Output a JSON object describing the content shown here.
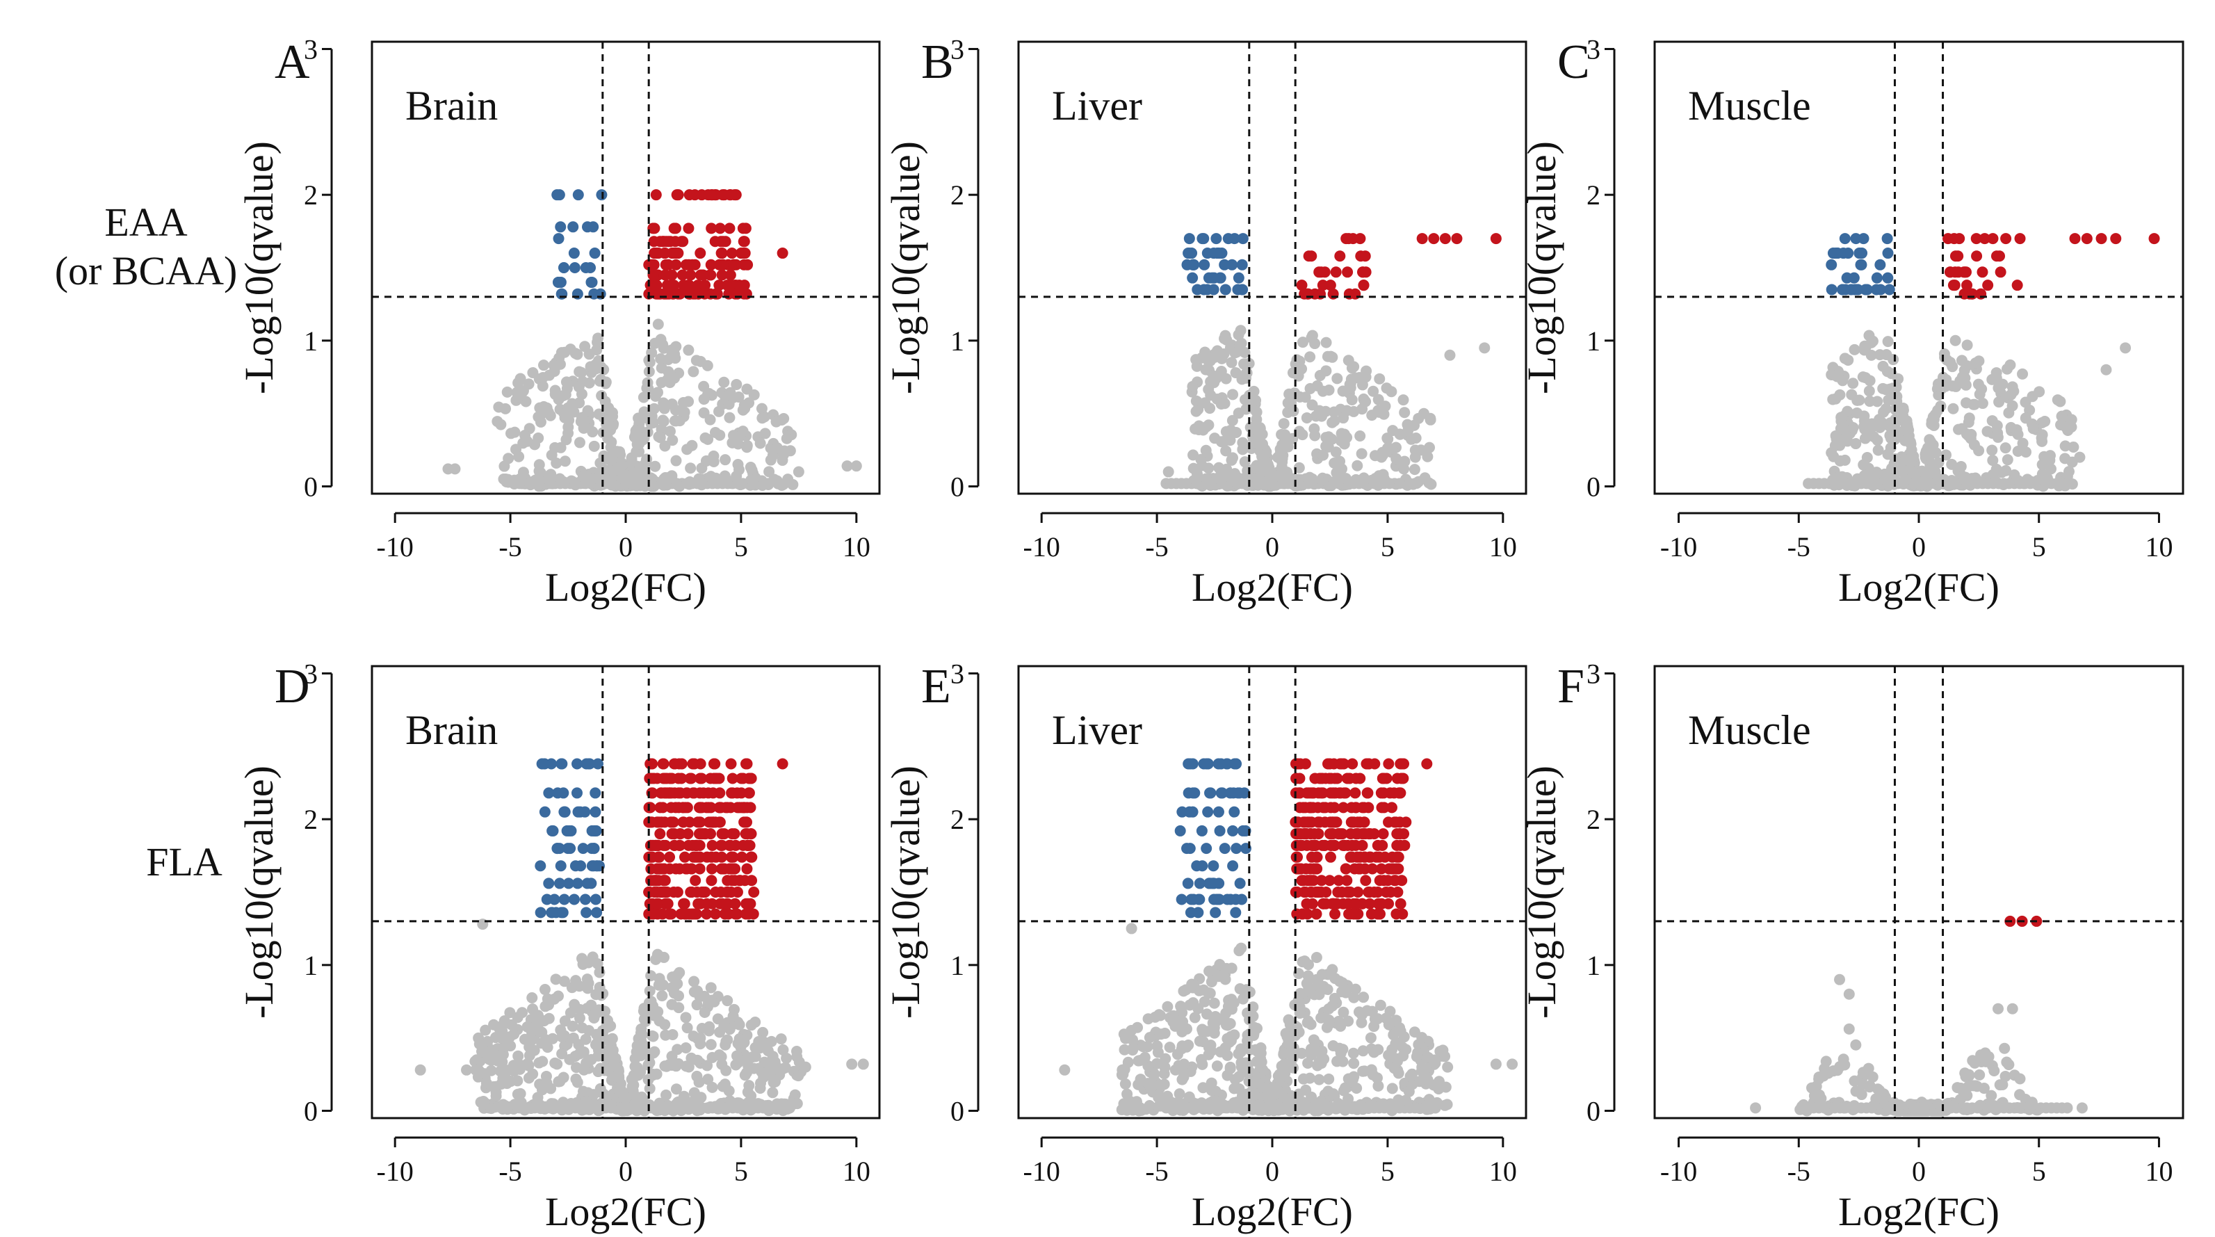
{
  "row_labels": {
    "eaa_line1": "EAA",
    "eaa_line2": "(or BCAA)",
    "fla": "FLA"
  },
  "colors": {
    "down": "#3A6A9E",
    "up": "#C4141C",
    "ns": "#BDBDBD",
    "axis": "#111111"
  },
  "chart_data": [
    {
      "type": "scatter",
      "panel": "A",
      "title": "Brain",
      "xlabel": "Log2(FC)",
      "ylabel": "-Log10(qvalue)",
      "xlim": [
        -11,
        11
      ],
      "ylim": [
        -0.05,
        3.05
      ],
      "xticks": [
        -10,
        -5,
        0,
        5,
        10
      ],
      "yticks": [
        0,
        1,
        2,
        3
      ],
      "xtick_labels": [
        "-10",
        "-5",
        "0",
        "5",
        "10"
      ],
      "ytick_labels": [
        "0",
        "1",
        "2",
        "3"
      ],
      "fc_threshold": [
        -1,
        1
      ],
      "q_threshold": 1.3,
      "down": {
        "x_range": [
          -3.0,
          -1.0
        ],
        "y_levels": [
          2.0,
          1.78,
          1.7,
          1.6,
          1.5,
          1.4,
          1.32
        ],
        "n": 26
      },
      "up": {
        "x_range": [
          1.0,
          5.3
        ],
        "y_levels": [
          2.0,
          1.77,
          1.68,
          1.6,
          1.52,
          1.45,
          1.38,
          1.32
        ],
        "n": 150,
        "outliers": [
          [
            6.8,
            1.6
          ]
        ]
      },
      "ns": {
        "n": 560,
        "x_extent": [
          -7.7,
          10.0
        ],
        "outliers": [
          [
            -7.4,
            0.12
          ],
          [
            -7.7,
            0.12
          ],
          [
            9.6,
            0.14
          ],
          [
            10.0,
            0.14
          ],
          [
            -5.2,
            0.05
          ],
          [
            7.5,
            0.1
          ]
        ]
      }
    },
    {
      "type": "scatter",
      "panel": "B",
      "title": "Liver",
      "xlabel": "Log2(FC)",
      "ylabel": "-Log10(qvalue)",
      "xlim": [
        -11,
        11
      ],
      "ylim": [
        -0.05,
        3.05
      ],
      "xticks": [
        -10,
        -5,
        0,
        5,
        10
      ],
      "yticks": [
        0,
        1,
        2,
        3
      ],
      "xtick_labels": [
        "-10",
        "-5",
        "0",
        "5",
        "10"
      ],
      "ytick_labels": [
        "0",
        "1",
        "2",
        "3"
      ],
      "fc_threshold": [
        -1,
        1
      ],
      "q_threshold": 1.3,
      "down": {
        "x_range": [
          -3.7,
          -1.2
        ],
        "y_levels": [
          1.7,
          1.6,
          1.52,
          1.43,
          1.35
        ],
        "n": 38
      },
      "up": {
        "x_range": [
          1.2,
          4.2
        ],
        "y_levels": [
          1.7,
          1.58,
          1.47,
          1.38,
          1.32
        ],
        "n": 30,
        "outliers": [
          [
            6.5,
            1.7
          ],
          [
            7.0,
            1.7
          ],
          [
            7.5,
            1.7
          ],
          [
            8.0,
            1.7
          ],
          [
            9.7,
            1.7
          ]
        ]
      },
      "ns": {
        "n": 540,
        "x_extent": [
          -4.8,
          9.5
        ],
        "outliers": [
          [
            7.7,
            0.9
          ],
          [
            9.2,
            0.95
          ],
          [
            6.2,
            0.2
          ],
          [
            5.7,
            0.12
          ],
          [
            -4.5,
            0.1
          ]
        ]
      }
    },
    {
      "type": "scatter",
      "panel": "C",
      "title": "Muscle",
      "xlabel": "Log2(FC)",
      "ylabel": "-Log10(qvalue)",
      "xlim": [
        -11,
        11
      ],
      "ylim": [
        -0.05,
        3.05
      ],
      "xticks": [
        -10,
        -5,
        0,
        5,
        10
      ],
      "yticks": [
        0,
        1,
        2,
        3
      ],
      "xtick_labels": [
        "-10",
        "-5",
        "0",
        "5",
        "10"
      ],
      "ytick_labels": [
        "0",
        "1",
        "2",
        "3"
      ],
      "fc_threshold": [
        -1,
        1
      ],
      "q_threshold": 1.3,
      "down": {
        "x_range": [
          -3.7,
          -1.2
        ],
        "y_levels": [
          1.7,
          1.6,
          1.52,
          1.43,
          1.35
        ],
        "n": 36
      },
      "up": {
        "x_range": [
          1.2,
          4.3
        ],
        "y_levels": [
          1.7,
          1.58,
          1.47,
          1.38,
          1.32
        ],
        "n": 32,
        "outliers": [
          [
            6.5,
            1.7
          ],
          [
            7.0,
            1.7
          ],
          [
            7.6,
            1.7
          ],
          [
            8.2,
            1.7
          ],
          [
            9.8,
            1.7
          ]
        ]
      },
      "ns": {
        "n": 540,
        "x_extent": [
          -5.0,
          9.0
        ],
        "outliers": [
          [
            7.8,
            0.8
          ],
          [
            8.6,
            0.95
          ],
          [
            6.7,
            0.2
          ],
          [
            5.5,
            0.12
          ]
        ]
      }
    },
    {
      "type": "scatter",
      "panel": "D",
      "title": "Brain",
      "xlabel": "Log2(FC)",
      "ylabel": "-Log10(qvalue)",
      "xlim": [
        -11,
        11
      ],
      "ylim": [
        -0.05,
        3.05
      ],
      "xticks": [
        -10,
        -5,
        0,
        5,
        10
      ],
      "yticks": [
        0,
        1,
        2,
        3
      ],
      "xtick_labels": [
        "-10",
        "-5",
        "0",
        "5",
        "10"
      ],
      "ytick_labels": [
        "0",
        "1",
        "2",
        "3"
      ],
      "fc_threshold": [
        -1,
        1
      ],
      "q_threshold": 1.3,
      "down": {
        "x_range": [
          -3.7,
          -1.1
        ],
        "y_levels": [
          2.38,
          2.18,
          2.05,
          1.92,
          1.8,
          1.68,
          1.56,
          1.45,
          1.36
        ],
        "n": 70
      },
      "up": {
        "x_range": [
          1.0,
          5.6
        ],
        "y_levels": [
          2.38,
          2.28,
          2.18,
          2.08,
          1.98,
          1.9,
          1.82,
          1.74,
          1.66,
          1.58,
          1.5,
          1.42,
          1.35
        ],
        "n": 340,
        "outliers": [
          [
            6.8,
            2.38
          ]
        ]
      },
      "ns": {
        "n": 760,
        "x_extent": [
          -9.0,
          10.5
        ],
        "outliers": [
          [
            -8.9,
            0.28
          ],
          [
            -6.5,
            0.28
          ],
          [
            -6.9,
            0.28
          ],
          [
            9.8,
            0.32
          ],
          [
            10.3,
            0.32
          ],
          [
            -6.2,
            1.28
          ],
          [
            -5.4,
            0.5
          ],
          [
            7.8,
            0.3
          ]
        ]
      }
    },
    {
      "type": "scatter",
      "panel": "E",
      "title": "Liver",
      "xlabel": "Log2(FC)",
      "ylabel": "-Log10(qvalue)",
      "xlim": [
        -11,
        11
      ],
      "ylim": [
        -0.05,
        3.05
      ],
      "xticks": [
        -10,
        -5,
        0,
        5,
        10
      ],
      "yticks": [
        0,
        1,
        2,
        3
      ],
      "xtick_labels": [
        "-10",
        "-5",
        "0",
        "5",
        "10"
      ],
      "ytick_labels": [
        "0",
        "1",
        "2",
        "3"
      ],
      "fc_threshold": [
        -1,
        1
      ],
      "q_threshold": 1.3,
      "down": {
        "x_range": [
          -4.0,
          -1.1
        ],
        "y_levels": [
          2.38,
          2.18,
          2.05,
          1.92,
          1.8,
          1.68,
          1.56,
          1.45,
          1.36
        ],
        "n": 75
      },
      "up": {
        "x_range": [
          1.0,
          5.8
        ],
        "y_levels": [
          2.38,
          2.28,
          2.18,
          2.08,
          1.98,
          1.9,
          1.82,
          1.74,
          1.66,
          1.58,
          1.5,
          1.42,
          1.35
        ],
        "n": 330,
        "outliers": [
          [
            6.7,
            2.38
          ]
        ]
      },
      "ns": {
        "n": 740,
        "x_extent": [
          -9.0,
          10.5
        ],
        "outliers": [
          [
            -9.0,
            0.28
          ],
          [
            -6.5,
            0.28
          ],
          [
            -6.1,
            1.25
          ],
          [
            9.7,
            0.32
          ],
          [
            10.4,
            0.32
          ],
          [
            7.6,
            0.3
          ],
          [
            -4.9,
            0.1
          ]
        ]
      }
    },
    {
      "type": "scatter",
      "panel": "F",
      "title": "Muscle",
      "xlabel": "Log2(FC)",
      "ylabel": "-Log10(qvalue)",
      "xlim": [
        -11,
        11
      ],
      "ylim": [
        -0.05,
        3.05
      ],
      "xticks": [
        -10,
        -5,
        0,
        5,
        10
      ],
      "yticks": [
        0,
        1,
        2,
        3
      ],
      "xtick_labels": [
        "-10",
        "-5",
        "0",
        "5",
        "10"
      ],
      "ytick_labels": [
        "0",
        "1",
        "2",
        "3"
      ],
      "fc_threshold": [
        -1,
        1
      ],
      "q_threshold": 1.3,
      "down": {
        "x_range": [
          -1.2,
          -1.1
        ],
        "y_levels": [],
        "n": 0
      },
      "up": {
        "x_range": [
          3.7,
          5.0
        ],
        "y_levels": [
          1.3
        ],
        "n": 3,
        "fixed": [
          [
            3.8,
            1.3
          ],
          [
            4.3,
            1.3
          ],
          [
            4.9,
            1.3
          ]
        ],
        "outliers": []
      },
      "ns": {
        "n": 230,
        "x_extent": [
          -6.8,
          6.8
        ],
        "muscle_style": true,
        "outliers": [
          [
            -6.8,
            0.02
          ],
          [
            6.8,
            0.02
          ],
          [
            -3.3,
            0.9
          ],
          [
            -2.9,
            0.8
          ],
          [
            3.3,
            0.7
          ],
          [
            3.9,
            0.7
          ]
        ]
      }
    }
  ]
}
